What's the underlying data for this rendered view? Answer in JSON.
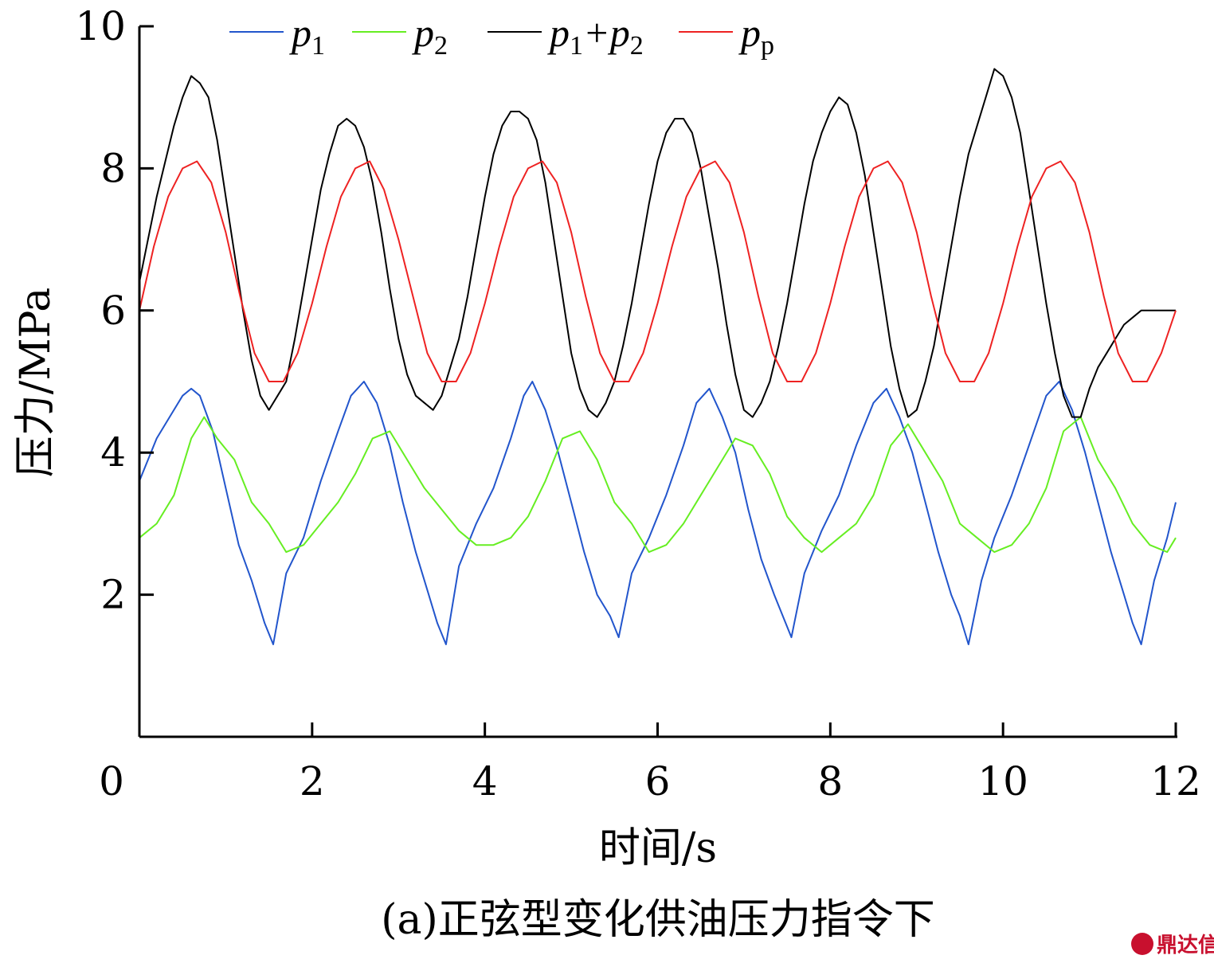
{
  "chart_data": {
    "type": "line",
    "xlabel": "时间/s",
    "ylabel": "压力/MPa",
    "xlim": [
      0,
      12
    ],
    "ylim": [
      0,
      10
    ],
    "xticks": [
      "0",
      "2",
      "4",
      "6",
      "8",
      "10",
      "12"
    ],
    "yticks": [
      "2",
      "4",
      "6",
      "8",
      "10"
    ],
    "legend_position": "top",
    "series": [
      {
        "name": "p1",
        "label_main": "p",
        "label_sub": "1",
        "color": "#2255cc",
        "x": [
          0.0,
          0.2,
          0.35,
          0.5,
          0.6,
          0.7,
          0.85,
          1.0,
          1.15,
          1.3,
          1.45,
          1.55,
          1.7,
          1.9,
          2.1,
          2.3,
          2.45,
          2.6,
          2.75,
          2.9,
          3.05,
          3.2,
          3.35,
          3.45,
          3.55,
          3.7,
          3.9,
          4.1,
          4.3,
          4.45,
          4.55,
          4.7,
          4.85,
          5.0,
          5.15,
          5.3,
          5.45,
          5.55,
          5.7,
          5.9,
          6.1,
          6.3,
          6.45,
          6.6,
          6.75,
          6.9,
          7.05,
          7.2,
          7.35,
          7.45,
          7.55,
          7.7,
          7.9,
          8.1,
          8.3,
          8.5,
          8.65,
          8.8,
          8.95,
          9.1,
          9.25,
          9.4,
          9.5,
          9.6,
          9.75,
          9.9,
          10.1,
          10.3,
          10.5,
          10.65,
          10.8,
          10.95,
          11.1,
          11.25,
          11.4,
          11.5,
          11.6,
          11.75,
          11.9,
          12.0
        ],
        "y": [
          3.6,
          4.2,
          4.5,
          4.8,
          4.9,
          4.8,
          4.3,
          3.5,
          2.7,
          2.2,
          1.6,
          1.3,
          2.3,
          2.8,
          3.6,
          4.3,
          4.8,
          5.0,
          4.7,
          4.1,
          3.3,
          2.6,
          2.0,
          1.6,
          1.3,
          2.4,
          3.0,
          3.5,
          4.2,
          4.8,
          5.0,
          4.6,
          4.0,
          3.3,
          2.6,
          2.0,
          1.7,
          1.4,
          2.3,
          2.8,
          3.4,
          4.1,
          4.7,
          4.9,
          4.5,
          4.0,
          3.2,
          2.5,
          2.0,
          1.7,
          1.4,
          2.3,
          2.9,
          3.4,
          4.1,
          4.7,
          4.9,
          4.5,
          4.0,
          3.3,
          2.6,
          2.0,
          1.7,
          1.3,
          2.2,
          2.8,
          3.4,
          4.1,
          4.8,
          5.0,
          4.6,
          4.0,
          3.3,
          2.6,
          2.0,
          1.6,
          1.3,
          2.2,
          2.8,
          3.3
        ]
      },
      {
        "name": "p2",
        "label_main": "p",
        "label_sub": "2",
        "color": "#66ee22",
        "x": [
          0.0,
          0.2,
          0.4,
          0.6,
          0.75,
          0.9,
          1.1,
          1.3,
          1.5,
          1.7,
          1.9,
          2.1,
          2.3,
          2.5,
          2.7,
          2.9,
          3.1,
          3.3,
          3.5,
          3.7,
          3.9,
          4.1,
          4.3,
          4.5,
          4.7,
          4.9,
          5.1,
          5.3,
          5.5,
          5.7,
          5.9,
          6.1,
          6.3,
          6.5,
          6.7,
          6.9,
          7.1,
          7.3,
          7.5,
          7.7,
          7.9,
          8.1,
          8.3,
          8.5,
          8.7,
          8.9,
          9.1,
          9.3,
          9.5,
          9.7,
          9.9,
          10.1,
          10.3,
          10.5,
          10.7,
          10.9,
          11.1,
          11.3,
          11.5,
          11.7,
          11.9,
          12.0
        ],
        "y": [
          2.8,
          3.0,
          3.4,
          4.2,
          4.5,
          4.2,
          3.9,
          3.3,
          3.0,
          2.6,
          2.7,
          3.0,
          3.3,
          3.7,
          4.2,
          4.3,
          3.9,
          3.5,
          3.2,
          2.9,
          2.7,
          2.7,
          2.8,
          3.1,
          3.6,
          4.2,
          4.3,
          3.9,
          3.3,
          3.0,
          2.6,
          2.7,
          3.0,
          3.4,
          3.8,
          4.2,
          4.1,
          3.7,
          3.1,
          2.8,
          2.6,
          2.8,
          3.0,
          3.4,
          4.1,
          4.4,
          4.0,
          3.6,
          3.0,
          2.8,
          2.6,
          2.7,
          3.0,
          3.5,
          4.3,
          4.5,
          3.9,
          3.5,
          3.0,
          2.7,
          2.6,
          2.8
        ]
      },
      {
        "name": "p1+p2",
        "label_main": "p",
        "label_sub": "1",
        "label_tail": "+p",
        "label_sub2": "2",
        "color": "#000000",
        "x": [
          0.0,
          0.1,
          0.2,
          0.3,
          0.4,
          0.5,
          0.6,
          0.7,
          0.8,
          0.9,
          1.0,
          1.1,
          1.2,
          1.3,
          1.4,
          1.5,
          1.6,
          1.7,
          1.8,
          1.9,
          2.0,
          2.1,
          2.2,
          2.3,
          2.4,
          2.5,
          2.6,
          2.7,
          2.8,
          2.9,
          3.0,
          3.1,
          3.2,
          3.3,
          3.4,
          3.5,
          3.6,
          3.7,
          3.8,
          3.9,
          4.0,
          4.1,
          4.2,
          4.3,
          4.4,
          4.5,
          4.6,
          4.7,
          4.8,
          4.9,
          5.0,
          5.1,
          5.2,
          5.3,
          5.4,
          5.5,
          5.6,
          5.7,
          5.8,
          5.9,
          6.0,
          6.1,
          6.2,
          6.3,
          6.4,
          6.5,
          6.6,
          6.7,
          6.8,
          6.9,
          7.0,
          7.1,
          7.2,
          7.3,
          7.4,
          7.5,
          7.6,
          7.7,
          7.8,
          7.9,
          8.0,
          8.1,
          8.2,
          8.3,
          8.4,
          8.5,
          8.6,
          8.7,
          8.8,
          8.9,
          9.0,
          9.1,
          9.2,
          9.3,
          9.4,
          9.5,
          9.6,
          9.7,
          9.8,
          9.9,
          10.0,
          10.1,
          10.2,
          10.3,
          10.4,
          10.5,
          10.6,
          10.7,
          10.8,
          10.9,
          11.0,
          11.1,
          11.2,
          11.3,
          11.4,
          11.5,
          11.6,
          11.7,
          11.8,
          11.9,
          12.0
        ],
        "y": [
          6.4,
          7.0,
          7.6,
          8.1,
          8.6,
          9.0,
          9.3,
          9.2,
          9.0,
          8.4,
          7.6,
          6.8,
          6.0,
          5.3,
          4.8,
          4.6,
          4.8,
          5.0,
          5.6,
          6.3,
          7.0,
          7.7,
          8.2,
          8.6,
          8.7,
          8.6,
          8.3,
          7.8,
          7.1,
          6.3,
          5.6,
          5.1,
          4.8,
          4.7,
          4.6,
          4.8,
          5.2,
          5.6,
          6.2,
          6.9,
          7.6,
          8.2,
          8.6,
          8.8,
          8.8,
          8.7,
          8.4,
          7.8,
          7.0,
          6.2,
          5.4,
          4.9,
          4.6,
          4.5,
          4.7,
          5.0,
          5.5,
          6.1,
          6.8,
          7.5,
          8.1,
          8.5,
          8.7,
          8.7,
          8.5,
          8.0,
          7.3,
          6.6,
          5.8,
          5.1,
          4.6,
          4.5,
          4.7,
          5.0,
          5.5,
          6.1,
          6.8,
          7.5,
          8.1,
          8.5,
          8.8,
          9.0,
          8.9,
          8.5,
          7.9,
          7.1,
          6.3,
          5.5,
          4.9,
          4.5,
          4.6,
          5.0,
          5.5,
          6.2,
          6.9,
          7.6,
          8.2,
          8.6,
          9.0,
          9.4,
          9.3,
          9.0,
          8.5,
          7.7,
          6.9,
          6.1,
          5.4,
          4.8,
          4.5,
          4.5,
          4.9,
          5.2,
          5.4,
          5.6,
          5.8,
          5.9,
          6.0,
          6.0,
          6.0,
          6.0,
          6.0
        ]
      },
      {
        "name": "pp",
        "label_main": "p",
        "label_sub": "p",
        "color": "#ee2222",
        "x": [
          0.0,
          0.167,
          0.333,
          0.5,
          0.667,
          0.833,
          1.0,
          1.167,
          1.333,
          1.5,
          1.667,
          1.833,
          2.0,
          2.167,
          2.333,
          2.5,
          2.667,
          2.833,
          3.0,
          3.167,
          3.333,
          3.5,
          3.667,
          3.833,
          4.0,
          4.167,
          4.333,
          4.5,
          4.667,
          4.833,
          5.0,
          5.167,
          5.333,
          5.5,
          5.667,
          5.833,
          6.0,
          6.167,
          6.333,
          6.5,
          6.667,
          6.833,
          7.0,
          7.167,
          7.333,
          7.5,
          7.667,
          7.833,
          8.0,
          8.167,
          8.333,
          8.5,
          8.667,
          8.833,
          9.0,
          9.167,
          9.333,
          9.5,
          9.667,
          9.833,
          10.0,
          10.167,
          10.333,
          10.5,
          10.667,
          10.833,
          11.0,
          11.167,
          11.333,
          11.5,
          11.667,
          11.833,
          12.0
        ],
        "y": [
          6.0,
          6.9,
          7.6,
          8.0,
          8.1,
          7.8,
          7.1,
          6.2,
          5.4,
          5.0,
          5.0,
          5.4,
          6.1,
          6.9,
          7.6,
          8.0,
          8.1,
          7.7,
          7.0,
          6.2,
          5.4,
          5.0,
          5.0,
          5.4,
          6.1,
          6.9,
          7.6,
          8.0,
          8.1,
          7.8,
          7.1,
          6.2,
          5.4,
          5.0,
          5.0,
          5.4,
          6.1,
          6.9,
          7.6,
          8.0,
          8.1,
          7.8,
          7.1,
          6.2,
          5.4,
          5.0,
          5.0,
          5.4,
          6.1,
          6.9,
          7.6,
          8.0,
          8.1,
          7.8,
          7.1,
          6.2,
          5.4,
          5.0,
          5.0,
          5.4,
          6.1,
          6.9,
          7.6,
          8.0,
          8.1,
          7.8,
          7.1,
          6.2,
          5.4,
          5.0,
          5.0,
          5.4,
          6.0
        ]
      }
    ]
  },
  "caption": "(a)正弦型变化供油压力指令下",
  "watermark": "鼎达信"
}
